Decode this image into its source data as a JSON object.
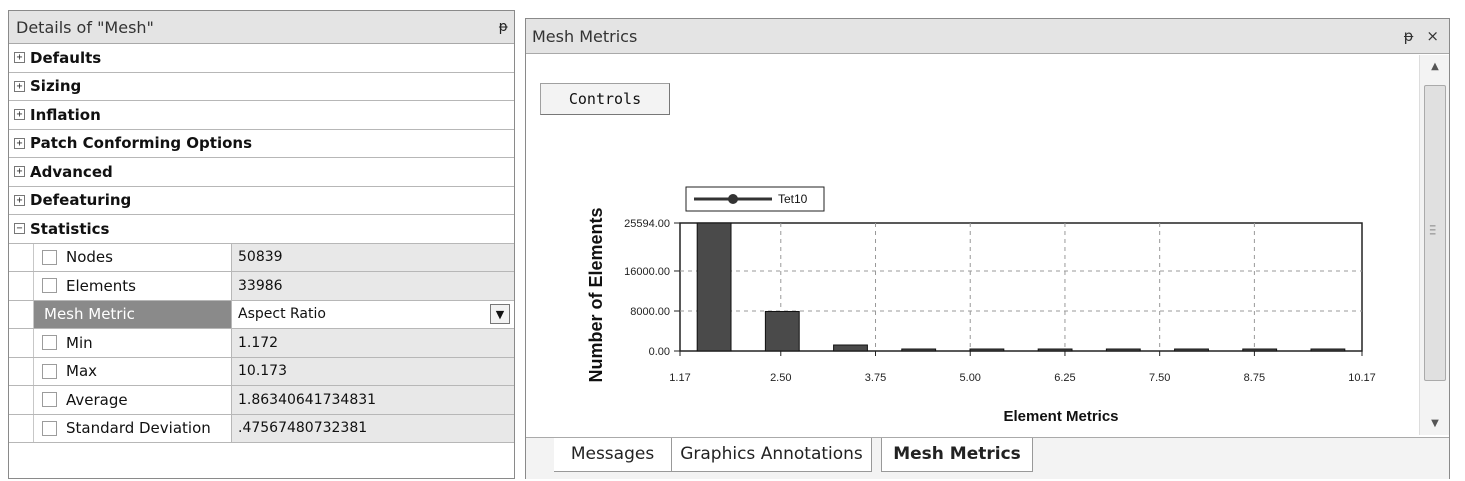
{
  "details": {
    "title": "Details of \"Mesh\"",
    "pin": "ᵽ",
    "categories": [
      {
        "label": "Defaults",
        "expander": "+"
      },
      {
        "label": "Sizing",
        "expander": "+"
      },
      {
        "label": "Inflation",
        "expander": "+"
      },
      {
        "label": "Patch Conforming Options",
        "expander": "+"
      },
      {
        "label": "Advanced",
        "expander": "+"
      },
      {
        "label": "Defeaturing",
        "expander": "+"
      },
      {
        "label": "Statistics",
        "expander": "−"
      }
    ],
    "stats": {
      "nodes": {
        "label": "Nodes",
        "value": "50839"
      },
      "elements": {
        "label": "Elements",
        "value": "33986"
      },
      "mesh_metric": {
        "label": "Mesh Metric",
        "value": "Aspect Ratio"
      },
      "min": {
        "label": "Min",
        "value": "1.172"
      },
      "max": {
        "label": "Max",
        "value": "10.173"
      },
      "average": {
        "label": "Average",
        "value": "1.86340641734831"
      },
      "std": {
        "label": "Standard Deviation",
        "value": ".47567480732381"
      }
    }
  },
  "metrics": {
    "title": "Mesh Metrics",
    "title_icons": "ᵽ ×",
    "controls_label": "Controls",
    "tabs": {
      "messages": "Messages",
      "graphics": "Graphics Annotations",
      "mesh": "Mesh Metrics"
    }
  },
  "chart_data": {
    "type": "bar",
    "legend": [
      "Tet10"
    ],
    "legend_position": "top-left",
    "xlabel": "Element Metrics",
    "ylabel": "Number of Elements",
    "x_ticks": [
      "1.17",
      "2.50",
      "3.75",
      "5.00",
      "6.25",
      "7.50",
      "8.75",
      "10.17"
    ],
    "y_ticks": [
      "0.00",
      "8000.00",
      "16000.00",
      "25594.00"
    ],
    "xlim": [
      1.17,
      10.17
    ],
    "ylim": [
      0,
      25594
    ],
    "grid": true,
    "series": [
      {
        "name": "Tet10",
        "color": "#4a4a4a",
        "bins": [
          {
            "x": 1.62,
            "value": 25594
          },
          {
            "x": 2.52,
            "value": 7900
          },
          {
            "x": 3.42,
            "value": 1200
          },
          {
            "x": 4.32,
            "value": 200
          },
          {
            "x": 5.22,
            "value": 80
          },
          {
            "x": 6.12,
            "value": 40
          },
          {
            "x": 7.02,
            "value": 20
          },
          {
            "x": 7.92,
            "value": 15
          },
          {
            "x": 8.82,
            "value": 10
          },
          {
            "x": 9.72,
            "value": 5
          }
        ]
      }
    ]
  }
}
